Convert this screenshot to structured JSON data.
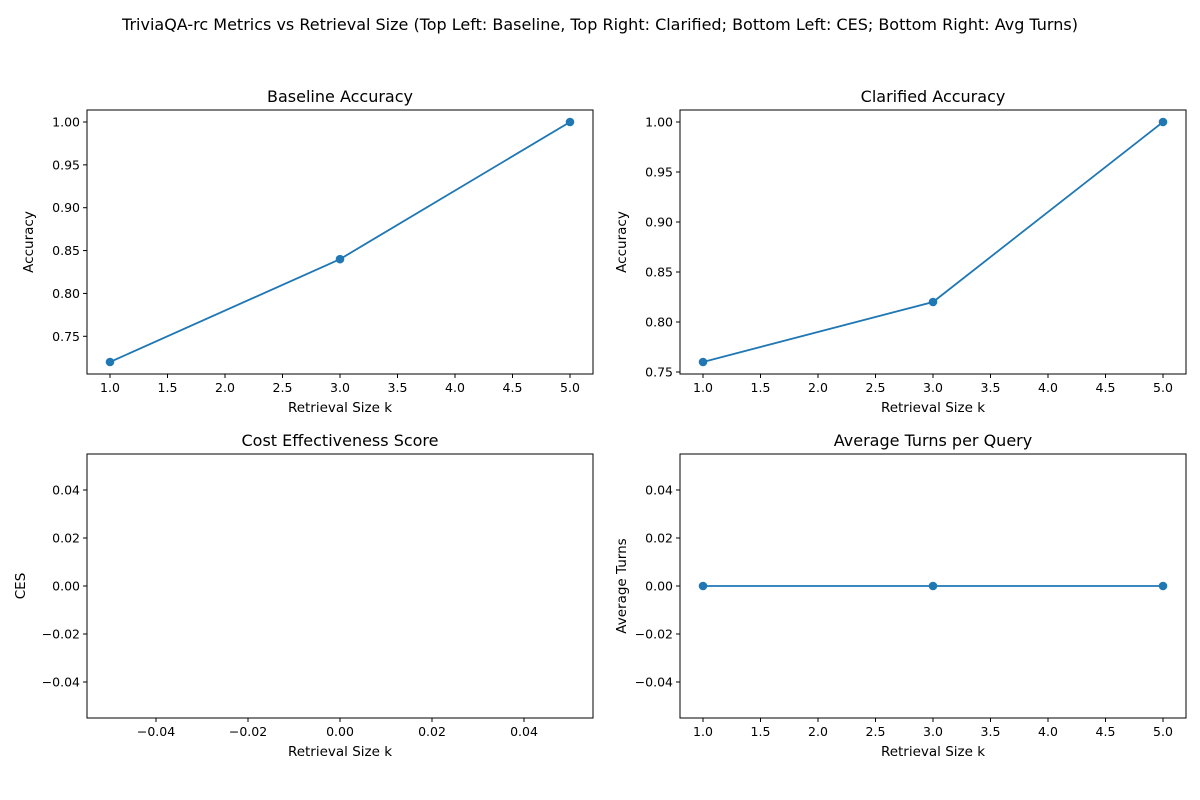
{
  "figure": {
    "suptitle": "TriviaQA-rc Metrics vs Retrieval Size (Top Left: Baseline, Top Right: Clarified; Bottom Left: CES; Bottom Right: Avg Turns)",
    "series_color": "#1f77b4"
  },
  "chart_data": [
    {
      "type": "line",
      "title": "Baseline Accuracy",
      "xlabel": "Retrieval Size k",
      "ylabel": "Accuracy",
      "x": [
        1,
        3,
        5
      ],
      "series": [
        {
          "values": [
            0.72,
            0.84,
            1.0
          ]
        }
      ],
      "xlim": [
        0.8,
        5.2
      ],
      "ylim": [
        0.706,
        1.014
      ],
      "xticks": [
        "1.0",
        "1.5",
        "2.0",
        "2.5",
        "3.0",
        "3.5",
        "4.0",
        "4.5",
        "5.0"
      ],
      "yticks": [
        "0.75",
        "0.80",
        "0.85",
        "0.90",
        "0.95",
        "1.00"
      ],
      "markers": true,
      "grid": false
    },
    {
      "type": "line",
      "title": "Clarified Accuracy",
      "xlabel": "Retrieval Size k",
      "ylabel": "Accuracy",
      "x": [
        1,
        3,
        5
      ],
      "series": [
        {
          "values": [
            0.76,
            0.82,
            1.0
          ]
        }
      ],
      "xlim": [
        0.8,
        5.2
      ],
      "ylim": [
        0.748,
        1.012
      ],
      "xticks": [
        "1.0",
        "1.5",
        "2.0",
        "2.5",
        "3.0",
        "3.5",
        "4.0",
        "4.5",
        "5.0"
      ],
      "yticks": [
        "0.75",
        "0.80",
        "0.85",
        "0.90",
        "0.95",
        "1.00"
      ],
      "markers": true,
      "grid": false
    },
    {
      "type": "line",
      "title": "Cost Effectiveness Score",
      "xlabel": "Retrieval Size k",
      "ylabel": "CES",
      "x": [],
      "series": [
        {
          "values": []
        }
      ],
      "xlim": [
        -0.055,
        0.055
      ],
      "ylim": [
        -0.055,
        0.055
      ],
      "xticks": [
        "−0.04",
        "−0.02",
        "0.00",
        "0.02",
        "0.04"
      ],
      "yticks": [
        "−0.04",
        "−0.02",
        "0.00",
        "0.02",
        "0.04"
      ],
      "markers": true,
      "grid": false
    },
    {
      "type": "line",
      "title": "Average Turns per Query",
      "xlabel": "Retrieval Size k",
      "ylabel": "Average Turns",
      "x": [
        1,
        3,
        5
      ],
      "series": [
        {
          "values": [
            0,
            0,
            0
          ]
        }
      ],
      "xlim": [
        0.8,
        5.2
      ],
      "ylim": [
        -0.055,
        0.055
      ],
      "xticks": [
        "1.0",
        "1.5",
        "2.0",
        "2.5",
        "3.0",
        "3.5",
        "4.0",
        "4.5",
        "5.0"
      ],
      "yticks": [
        "−0.04",
        "−0.02",
        "0.00",
        "0.02",
        "0.04"
      ],
      "markers": true,
      "grid": false
    }
  ]
}
